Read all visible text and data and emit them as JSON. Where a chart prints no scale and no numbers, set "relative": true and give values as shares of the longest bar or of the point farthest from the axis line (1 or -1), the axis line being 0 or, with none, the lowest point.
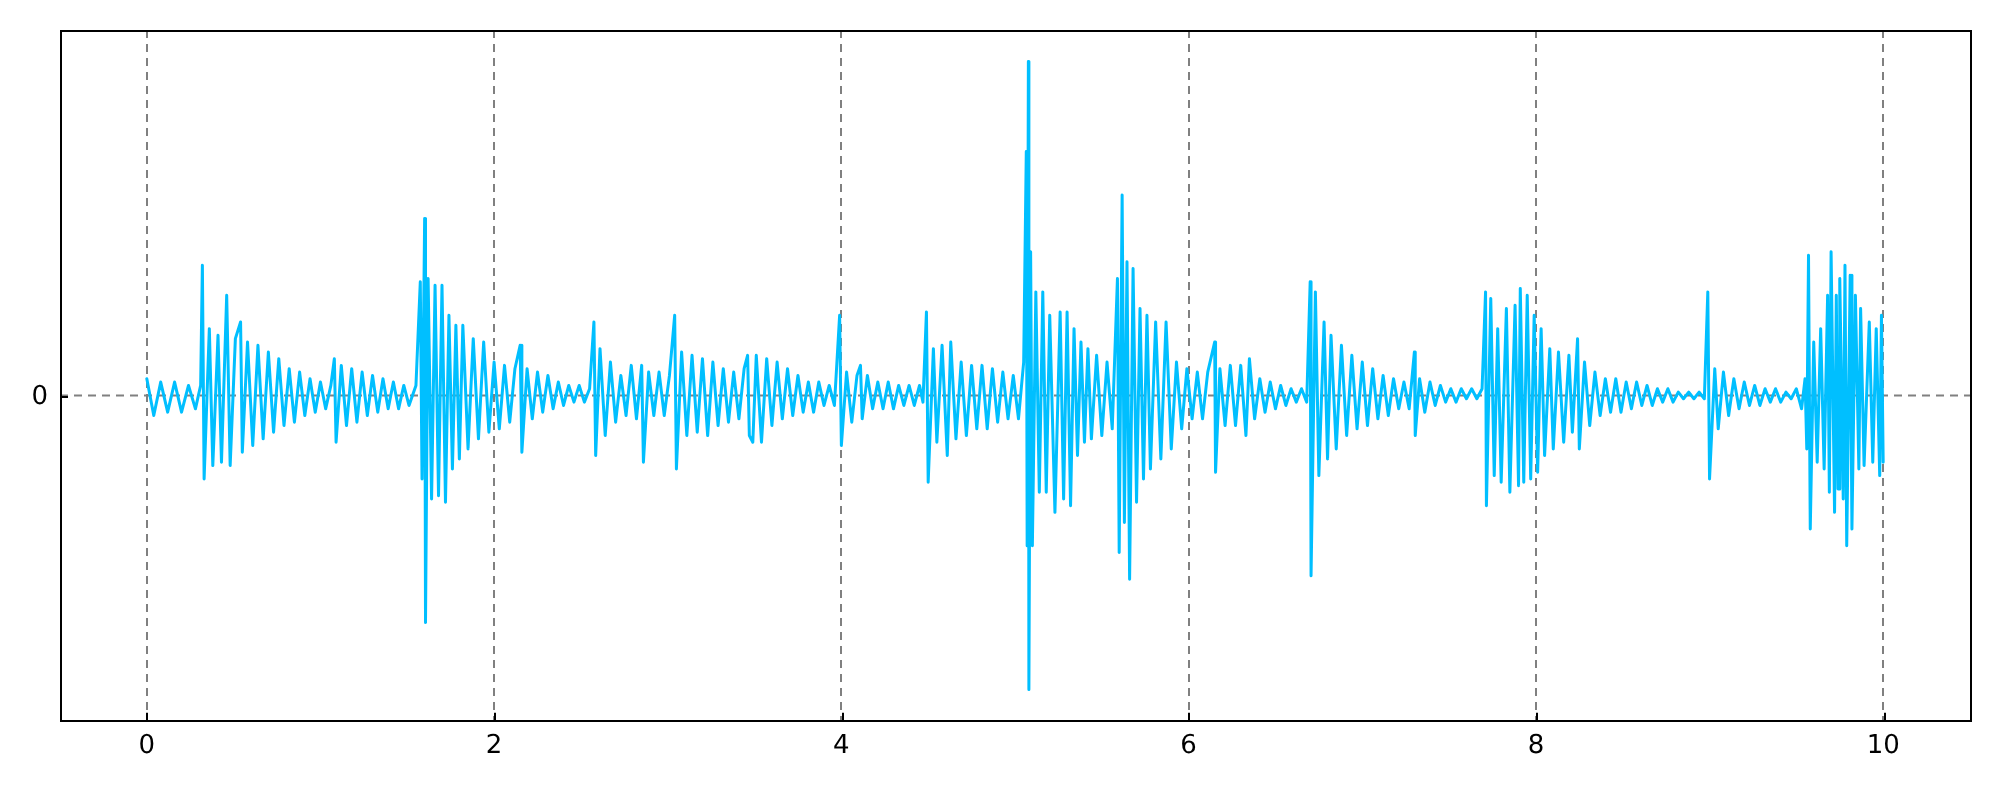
{
  "chart_data": {
    "type": "line",
    "relative": true,
    "color": "#00bfff",
    "xlim": [
      -0.5,
      10.5
    ],
    "xticks": [
      0,
      2,
      4,
      6,
      8,
      10
    ],
    "grid": "x",
    "ref_lines": [
      {
        "axis": "y",
        "value": 0,
        "label": "0",
        "color": "#808080",
        "line_style": "dashed"
      }
    ],
    "x": [
      0,
      0.04,
      0.08,
      0.12,
      0.16,
      0.2,
      0.24,
      0.28,
      0.31,
      0.32,
      0.33,
      0.36,
      0.38,
      0.41,
      0.43,
      0.46,
      0.48,
      0.51,
      0.54,
      0.55,
      0.58,
      0.61,
      0.64,
      0.67,
      0.7,
      0.73,
      0.76,
      0.79,
      0.82,
      0.85,
      0.88,
      0.91,
      0.94,
      0.97,
      1,
      1.03,
      1.06,
      1.08,
      1.09,
      1.12,
      1.15,
      1.18,
      1.21,
      1.24,
      1.27,
      1.3,
      1.33,
      1.36,
      1.39,
      1.42,
      1.45,
      1.48,
      1.51,
      1.55,
      1.575,
      1.585,
      1.6,
      1.605,
      1.62,
      1.64,
      1.66,
      1.68,
      1.7,
      1.72,
      1.74,
      1.76,
      1.78,
      1.8,
      1.82,
      1.85,
      1.88,
      1.91,
      1.94,
      1.97,
      2,
      2.03,
      2.06,
      2.09,
      2.12,
      2.15,
      2.16,
      2.19,
      2.22,
      2.25,
      2.28,
      2.31,
      2.34,
      2.37,
      2.4,
      2.43,
      2.46,
      2.49,
      2.52,
      2.55,
      2.575,
      2.585,
      2.61,
      2.64,
      2.67,
      2.7,
      2.73,
      2.76,
      2.79,
      2.82,
      2.85,
      2.86,
      2.89,
      2.92,
      2.95,
      2.98,
      3.01,
      3.04,
      3.05,
      3.08,
      3.11,
      3.14,
      3.17,
      3.2,
      3.23,
      3.26,
      3.29,
      3.32,
      3.35,
      3.38,
      3.41,
      3.44,
      3.46,
      3.47,
      3.49,
      3.51,
      3.54,
      3.57,
      3.6,
      3.63,
      3.66,
      3.69,
      3.72,
      3.75,
      3.78,
      3.81,
      3.84,
      3.87,
      3.9,
      3.93,
      3.96,
      3.99,
      4,
      4.03,
      4.06,
      4.09,
      4.11,
      4.12,
      4.15,
      4.18,
      4.21,
      4.24,
      4.27,
      4.3,
      4.33,
      4.36,
      4.39,
      4.42,
      4.45,
      4.47,
      4.49,
      4.5,
      4.53,
      4.55,
      4.58,
      4.61,
      4.63,
      4.66,
      4.69,
      4.72,
      4.75,
      4.78,
      4.81,
      4.84,
      4.87,
      4.9,
      4.93,
      4.96,
      4.99,
      5.02,
      5.05,
      5.065,
      5.07,
      5.077,
      5.08,
      5.09,
      5.1,
      5.12,
      5.14,
      5.16,
      5.18,
      5.2,
      5.23,
      5.26,
      5.28,
      5.3,
      5.32,
      5.34,
      5.36,
      5.38,
      5.4,
      5.42,
      5.44,
      5.47,
      5.5,
      5.53,
      5.56,
      5.59,
      5.6,
      5.617,
      5.63,
      5.645,
      5.66,
      5.68,
      5.7,
      5.72,
      5.74,
      5.76,
      5.78,
      5.81,
      5.84,
      5.87,
      5.9,
      5.93,
      5.96,
      5.99,
      6.02,
      6.05,
      6.08,
      6.11,
      6.15,
      6.155,
      6.18,
      6.21,
      6.24,
      6.27,
      6.3,
      6.33,
      6.35,
      6.38,
      6.41,
      6.44,
      6.47,
      6.5,
      6.53,
      6.56,
      6.59,
      6.62,
      6.65,
      6.68,
      6.7,
      6.705,
      6.73,
      6.75,
      6.78,
      6.8,
      6.82,
      6.85,
      6.88,
      6.91,
      6.94,
      6.97,
      7,
      7.03,
      7.06,
      7.09,
      7.12,
      7.15,
      7.18,
      7.21,
      7.24,
      7.27,
      7.3,
      7.305,
      7.33,
      7.36,
      7.39,
      7.42,
      7.45,
      7.48,
      7.51,
      7.54,
      7.57,
      7.6,
      7.63,
      7.66,
      7.69,
      7.71,
      7.715,
      7.74,
      7.76,
      7.78,
      7.8,
      7.83,
      7.85,
      7.88,
      7.9,
      7.91,
      7.93,
      7.95,
      7.97,
      7.99,
      8.01,
      8.03,
      8.05,
      8.08,
      8.1,
      8.13,
      8.16,
      8.19,
      8.21,
      8.24,
      8.25,
      8.28,
      8.31,
      8.34,
      8.37,
      8.4,
      8.43,
      8.46,
      8.49,
      8.52,
      8.55,
      8.58,
      8.61,
      8.64,
      8.67,
      8.7,
      8.73,
      8.76,
      8.79,
      8.82,
      8.85,
      8.88,
      8.91,
      8.94,
      8.97,
      8.99,
      9,
      9.03,
      9.05,
      9.08,
      9.11,
      9.14,
      9.17,
      9.2,
      9.23,
      9.26,
      9.29,
      9.32,
      9.35,
      9.38,
      9.41,
      9.44,
      9.47,
      9.5,
      9.53,
      9.55,
      9.56,
      9.57,
      9.58,
      9.6,
      9.62,
      9.64,
      9.66,
      9.68,
      9.69,
      9.7,
      9.72,
      9.73,
      9.74,
      9.75,
      9.77,
      9.78,
      9.79,
      9.81,
      9.82,
      9.84,
      9.86,
      9.87,
      9.89,
      9.92,
      9.94,
      9.96,
      9.98,
      9.99,
      10
    ],
    "values": [
      0.05,
      -0.06,
      0.04,
      -0.05,
      0.04,
      -0.05,
      0.03,
      -0.04,
      0.03,
      0.39,
      -0.25,
      0.2,
      -0.21,
      0.18,
      -0.2,
      0.3,
      -0.21,
      0.17,
      0.22,
      -0.17,
      0.16,
      -0.15,
      0.15,
      -0.13,
      0.13,
      -0.11,
      0.11,
      -0.09,
      0.08,
      -0.08,
      0.07,
      -0.06,
      0.05,
      -0.05,
      0.04,
      -0.04,
      0.03,
      0.11,
      -0.14,
      0.09,
      -0.09,
      0.08,
      -0.08,
      0.07,
      -0.06,
      0.06,
      -0.05,
      0.05,
      -0.04,
      0.04,
      -0.04,
      0.03,
      -0.03,
      0.03,
      0.34,
      -0.25,
      0.53,
      -0.68,
      0.35,
      -0.31,
      0.33,
      -0.3,
      0.33,
      -0.32,
      0.24,
      -0.22,
      0.21,
      -0.19,
      0.21,
      -0.16,
      0.17,
      -0.13,
      0.16,
      -0.11,
      0.1,
      -0.1,
      0.09,
      -0.08,
      0.08,
      0.15,
      -0.17,
      0.08,
      -0.07,
      0.07,
      -0.05,
      0.06,
      -0.04,
      0.04,
      -0.03,
      0.03,
      -0.02,
      0.03,
      -0.02,
      0.02,
      0.22,
      -0.18,
      0.14,
      -0.12,
      0.1,
      -0.08,
      0.06,
      -0.06,
      0.09,
      -0.07,
      0.09,
      -0.2,
      0.07,
      -0.06,
      0.07,
      -0.06,
      0.06,
      0.24,
      -0.22,
      0.13,
      -0.12,
      0.12,
      -0.11,
      0.11,
      -0.12,
      0.1,
      -0.09,
      0.08,
      -0.08,
      0.07,
      -0.07,
      0.08,
      0.12,
      -0.12,
      -0.14,
      0.12,
      -0.14,
      0.11,
      -0.09,
      0.1,
      -0.07,
      0.08,
      -0.06,
      0.06,
      -0.05,
      0.04,
      -0.05,
      0.04,
      -0.03,
      0.03,
      -0.03,
      0.24,
      -0.15,
      0.07,
      -0.08,
      0.06,
      0.09,
      -0.07,
      0.06,
      -0.04,
      0.04,
      -0.04,
      0.04,
      -0.04,
      0.03,
      -0.03,
      0.03,
      -0.03,
      0.03,
      -0.02,
      0.25,
      -0.26,
      0.14,
      -0.14,
      0.15,
      -0.18,
      0.16,
      -0.13,
      0.1,
      -0.12,
      0.09,
      -0.1,
      0.09,
      -0.1,
      0.08,
      -0.08,
      0.07,
      -0.07,
      0.06,
      -0.07,
      0.1,
      0.73,
      -0.45,
      1,
      -0.88,
      0.43,
      -0.45,
      0.31,
      -0.29,
      0.31,
      -0.29,
      0.24,
      -0.35,
      0.25,
      -0.31,
      0.25,
      -0.33,
      0.2,
      -0.18,
      0.16,
      -0.14,
      0.14,
      -0.13,
      0.12,
      -0.12,
      0.1,
      -0.1,
      0.35,
      -0.47,
      0.6,
      -0.38,
      0.4,
      -0.55,
      0.38,
      -0.32,
      0.26,
      -0.25,
      0.24,
      -0.22,
      0.22,
      -0.19,
      0.22,
      -0.16,
      0.1,
      -0.1,
      0.08,
      -0.07,
      0.07,
      -0.07,
      0.07,
      0.16,
      -0.23,
      0.08,
      -0.09,
      0.09,
      -0.09,
      0.09,
      -0.12,
      0.11,
      -0.07,
      0.05,
      -0.05,
      0.04,
      -0.04,
      0.03,
      -0.03,
      0.02,
      -0.02,
      0.02,
      -0.02,
      0.34,
      -0.54,
      0.31,
      -0.24,
      0.22,
      -0.19,
      0.18,
      -0.16,
      0.15,
      -0.12,
      0.12,
      -0.1,
      0.1,
      -0.09,
      0.08,
      -0.07,
      0.06,
      -0.06,
      0.05,
      -0.04,
      0.04,
      -0.04,
      0.13,
      -0.12,
      0.05,
      -0.05,
      0.04,
      -0.03,
      0.03,
      -0.02,
      0.02,
      -0.02,
      0.02,
      -0.01,
      0.02,
      -0.01,
      0.02,
      0.31,
      -0.33,
      0.29,
      -0.24,
      0.2,
      -0.26,
      0.26,
      -0.29,
      0.27,
      -0.27,
      0.32,
      -0.26,
      0.3,
      -0.25,
      0.24,
      -0.23,
      0.2,
      -0.18,
      0.14,
      -0.16,
      0.13,
      -0.14,
      0.12,
      -0.11,
      0.17,
      -0.16,
      0.1,
      -0.09,
      0.07,
      -0.06,
      0.05,
      -0.05,
      0.05,
      -0.05,
      0.04,
      -0.04,
      0.04,
      -0.03,
      0.03,
      -0.03,
      0.02,
      -0.02,
      0.02,
      -0.02,
      0.01,
      -0.01,
      0.01,
      -0.01,
      0.01,
      -0.01,
      0.31,
      -0.25,
      0.08,
      -0.1,
      0.07,
      -0.06,
      0.05,
      -0.04,
      0.04,
      -0.03,
      0.03,
      -0.03,
      0.02,
      -0.02,
      0.02,
      -0.02,
      0.01,
      -0.01,
      0.02,
      -0.04,
      0.05,
      -0.16,
      0.42,
      -0.4,
      0.16,
      -0.2,
      0.2,
      -0.22,
      0.3,
      -0.29,
      0.43,
      -0.35,
      0.3,
      -0.28,
      0.35,
      -0.31,
      0.39,
      -0.45,
      0.36,
      -0.4,
      0.3,
      -0.22,
      0.26,
      -0.21,
      0.22,
      -0.2,
      0.2,
      -0.24,
      0.24,
      -0.2
    ]
  }
}
